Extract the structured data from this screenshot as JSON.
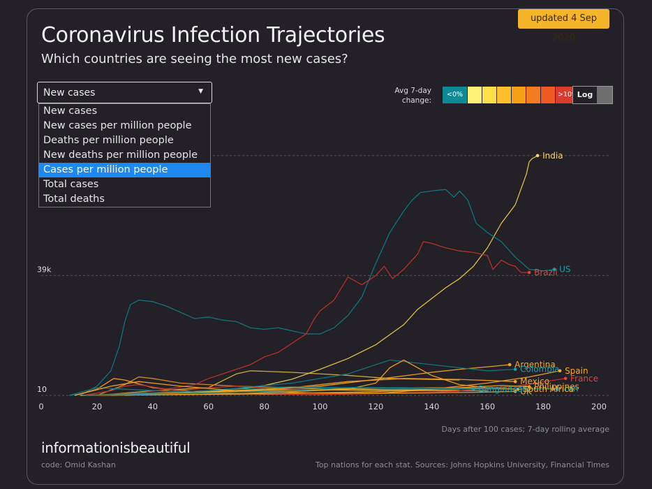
{
  "header": {
    "updated": "updated 4 Sep 2020",
    "title": "Coronavirus Infection Trajectories",
    "subtitle": "Which countries are seeing the most new cases?"
  },
  "metric_select": {
    "value": "New cases",
    "options": [
      "New cases",
      "New cases per million people",
      "Deaths per million people",
      "New deaths per million people",
      "Cases per million people",
      "Total cases",
      "Total deaths"
    ],
    "highlighted": "Cases per million people"
  },
  "legend": {
    "label_line1": "Avg 7-day",
    "label_line2": "change:",
    "swatches": [
      {
        "label": "<0%",
        "color": "#0d8a96"
      },
      {
        "label": "",
        "color": "#fff176"
      },
      {
        "label": "",
        "color": "#fde047"
      },
      {
        "label": "",
        "color": "#fbc02d"
      },
      {
        "label": "",
        "color": "#f6a016"
      },
      {
        "label": "",
        "color": "#f47b20"
      },
      {
        "label": "",
        "color": "#f05a22"
      },
      {
        "label": ">10%",
        "color": "#d93b2e"
      }
    ]
  },
  "log_toggle": {
    "label": "Log",
    "on": false
  },
  "chart_data": {
    "type": "line",
    "xlabel": "Days after 100 cases; 7-day rolling average",
    "ylabel": "",
    "xlim": [
      0,
      200
    ],
    "xticks": [
      0,
      20,
      40,
      60,
      80,
      100,
      120,
      140,
      160,
      180,
      200
    ],
    "y_gridlines": [
      {
        "label": "10",
        "value": 10
      },
      {
        "label": "39k",
        "value": 39000
      },
      {
        "label": "",
        "value": 78000
      }
    ],
    "ylim": [
      0,
      90000
    ],
    "grid": true,
    "series": [
      {
        "name": "India",
        "color": "#e8c84a",
        "label_color": "#f5d76e",
        "points": [
          [
            14,
            10
          ],
          [
            20,
            150
          ],
          [
            30,
            300
          ],
          [
            40,
            500
          ],
          [
            50,
            800
          ],
          [
            60,
            1300
          ],
          [
            70,
            2000
          ],
          [
            80,
            3200
          ],
          [
            90,
            5300
          ],
          [
            100,
            8500
          ],
          [
            110,
            12000
          ],
          [
            120,
            16500
          ],
          [
            130,
            23000
          ],
          [
            135,
            28000
          ],
          [
            140,
            31500
          ],
          [
            145,
            35000
          ],
          [
            150,
            38000
          ],
          [
            155,
            42000
          ],
          [
            160,
            48000
          ],
          [
            165,
            56000
          ],
          [
            170,
            62000
          ],
          [
            172,
            67000
          ],
          [
            174,
            72000
          ],
          [
            175,
            76000
          ],
          [
            176,
            77000
          ],
          [
            178,
            78000
          ]
        ]
      },
      {
        "name": "US",
        "color": "#0e7a84",
        "label_color": "#17a2ae",
        "points": [
          [
            10,
            10
          ],
          [
            15,
            500
          ],
          [
            20,
            3000
          ],
          [
            25,
            8000
          ],
          [
            28,
            16000
          ],
          [
            30,
            24000
          ],
          [
            32,
            29500
          ],
          [
            35,
            31000
          ],
          [
            40,
            30500
          ],
          [
            45,
            29000
          ],
          [
            50,
            27000
          ],
          [
            55,
            25000
          ],
          [
            60,
            25500
          ],
          [
            65,
            24500
          ],
          [
            70,
            24000
          ],
          [
            75,
            22000
          ],
          [
            80,
            21500
          ],
          [
            85,
            22000
          ],
          [
            90,
            21000
          ],
          [
            95,
            20000
          ],
          [
            100,
            20000
          ],
          [
            105,
            22000
          ],
          [
            110,
            26000
          ],
          [
            115,
            32000
          ],
          [
            120,
            43000
          ],
          [
            125,
            53000
          ],
          [
            130,
            60000
          ],
          [
            133,
            63500
          ],
          [
            136,
            66000
          ],
          [
            140,
            66500
          ],
          [
            145,
            67000
          ],
          [
            148,
            64500
          ],
          [
            150,
            66500
          ],
          [
            153,
            63500
          ],
          [
            156,
            56000
          ],
          [
            160,
            53000
          ],
          [
            165,
            50000
          ],
          [
            170,
            45000
          ],
          [
            175,
            41000
          ],
          [
            180,
            40500
          ],
          [
            184,
            41000
          ]
        ]
      },
      {
        "name": "Brazil",
        "color": "#c0322b",
        "label_color": "#e0463a",
        "points": [
          [
            15,
            10
          ],
          [
            25,
            300
          ],
          [
            35,
            800
          ],
          [
            45,
            2000
          ],
          [
            55,
            3500
          ],
          [
            60,
            5500
          ],
          [
            65,
            7000
          ],
          [
            70,
            8500
          ],
          [
            75,
            10000
          ],
          [
            80,
            12500
          ],
          [
            85,
            14000
          ],
          [
            90,
            17000
          ],
          [
            95,
            20000
          ],
          [
            98,
            25000
          ],
          [
            100,
            27500
          ],
          [
            105,
            31000
          ],
          [
            110,
            38500
          ],
          [
            115,
            36000
          ],
          [
            120,
            39000
          ],
          [
            123,
            42000
          ],
          [
            126,
            38000
          ],
          [
            130,
            41000
          ],
          [
            135,
            46000
          ],
          [
            137,
            50000
          ],
          [
            140,
            49500
          ],
          [
            145,
            48000
          ],
          [
            150,
            47000
          ],
          [
            155,
            46500
          ],
          [
            160,
            45500
          ],
          [
            162,
            41000
          ],
          [
            165,
            44000
          ],
          [
            168,
            42500
          ],
          [
            170,
            42000
          ],
          [
            172,
            40000
          ],
          [
            175,
            40000
          ]
        ]
      },
      {
        "name": "Argentina",
        "color": "#f4a21d",
        "label_color": "#f7a823",
        "points": [
          [
            15,
            10
          ],
          [
            50,
            800
          ],
          [
            80,
            2000
          ],
          [
            100,
            3000
          ],
          [
            120,
            5200
          ],
          [
            140,
            7500
          ],
          [
            150,
            8500
          ],
          [
            160,
            9300
          ],
          [
            168,
            10000
          ]
        ]
      },
      {
        "name": "Colombia",
        "color": "#0e7a84",
        "label_color": "#17a2ae",
        "points": [
          [
            15,
            10
          ],
          [
            60,
            1500
          ],
          [
            90,
            4000
          ],
          [
            110,
            7000
          ],
          [
            120,
            10000
          ],
          [
            125,
            11500
          ],
          [
            130,
            11000
          ],
          [
            140,
            10000
          ],
          [
            150,
            9000
          ],
          [
            160,
            8000
          ],
          [
            170,
            8500
          ]
        ]
      },
      {
        "name": "Spain",
        "color": "#f4a21d",
        "label_color": "#f7a823",
        "points": [
          [
            12,
            10
          ],
          [
            20,
            2000
          ],
          [
            26,
            5500
          ],
          [
            30,
            5000
          ],
          [
            40,
            2500
          ],
          [
            60,
            800
          ],
          [
            80,
            400
          ],
          [
            100,
            300
          ],
          [
            120,
            600
          ],
          [
            140,
            2000
          ],
          [
            160,
            4000
          ],
          [
            175,
            6000
          ],
          [
            186,
            8000
          ]
        ]
      },
      {
        "name": "France",
        "color": "#c0322b",
        "label_color": "#e0463a",
        "points": [
          [
            15,
            10
          ],
          [
            25,
            1500
          ],
          [
            30,
            3000
          ],
          [
            35,
            3500
          ],
          [
            45,
            2000
          ],
          [
            60,
            600
          ],
          [
            100,
            300
          ],
          [
            140,
            800
          ],
          [
            170,
            3000
          ],
          [
            188,
            5500
          ]
        ]
      },
      {
        "name": "Mexico",
        "color": "#f4a21d",
        "label_color": "#f7a823",
        "points": [
          [
            15,
            10
          ],
          [
            60,
            1000
          ],
          [
            90,
            2500
          ],
          [
            110,
            4500
          ],
          [
            130,
            5500
          ],
          [
            150,
            5200
          ],
          [
            170,
            4500
          ]
        ]
      },
      {
        "name": "Philippines",
        "color": "#f4a21d",
        "label_color": "#f7a823",
        "points": [
          [
            15,
            10
          ],
          [
            80,
            500
          ],
          [
            120,
            1200
          ],
          [
            150,
            2500
          ],
          [
            165,
            3200
          ],
          [
            175,
            2800
          ]
        ]
      },
      {
        "name": "Iran",
        "color": "#0e7a84",
        "label_color": "#17a2ae",
        "points": [
          [
            10,
            10
          ],
          [
            20,
            2500
          ],
          [
            30,
            2000
          ],
          [
            50,
            1200
          ],
          [
            70,
            2000
          ],
          [
            90,
            2800
          ],
          [
            110,
            2500
          ],
          [
            130,
            2200
          ],
          [
            160,
            2000
          ],
          [
            185,
            2200
          ]
        ]
      },
      {
        "name": "UK",
        "color": "#f4a21d",
        "label_color": "#f7a823",
        "points": [
          [
            12,
            10
          ],
          [
            25,
            3000
          ],
          [
            35,
            4500
          ],
          [
            50,
            3000
          ],
          [
            70,
            1500
          ],
          [
            100,
            700
          ],
          [
            130,
            800
          ],
          [
            155,
            1000
          ],
          [
            170,
            1300
          ]
        ]
      },
      {
        "name": "South Africa",
        "color": "#f4a21d",
        "label_color": "#f7a823",
        "points": [
          [
            15,
            10
          ],
          [
            70,
            500
          ],
          [
            110,
            2000
          ],
          [
            120,
            4000
          ],
          [
            125,
            9000
          ],
          [
            130,
            11500
          ],
          [
            135,
            9000
          ],
          [
            140,
            6500
          ],
          [
            150,
            3500
          ],
          [
            160,
            2500
          ],
          [
            171,
            2000
          ]
        ]
      },
      {
        "name": "Bangladesh",
        "color": "#0e7a84",
        "label_color": "#17a2ae",
        "points": [
          [
            15,
            10
          ],
          [
            60,
            800
          ],
          [
            90,
            1500
          ],
          [
            110,
            2600
          ],
          [
            130,
            2500
          ],
          [
            150,
            2200
          ],
          [
            155,
            2100
          ]
        ]
      },
      {
        "name": "",
        "color": "#d4b33a",
        "label_color": "",
        "points": [
          [
            20,
            10
          ],
          [
            40,
            1500
          ],
          [
            60,
            2500
          ],
          [
            70,
            7000
          ],
          [
            75,
            8000
          ],
          [
            90,
            7500
          ],
          [
            110,
            6500
          ],
          [
            125,
            5500
          ],
          [
            140,
            5200
          ],
          [
            150,
            5000
          ]
        ]
      },
      {
        "name": "",
        "color": "#e08a1e",
        "label_color": "",
        "points": [
          [
            20,
            10
          ],
          [
            30,
            3500
          ],
          [
            35,
            6000
          ],
          [
            40,
            5500
          ],
          [
            50,
            4000
          ],
          [
            60,
            3500
          ],
          [
            70,
            3000
          ],
          [
            90,
            2500
          ],
          [
            110,
            2000
          ],
          [
            140,
            1800
          ],
          [
            150,
            1700
          ]
        ]
      },
      {
        "name": "",
        "color": "#d9a52a",
        "label_color": "",
        "points": [
          [
            25,
            10
          ],
          [
            50,
            1000
          ],
          [
            80,
            1800
          ],
          [
            110,
            2200
          ],
          [
            140,
            2500
          ],
          [
            160,
            2300
          ]
        ]
      },
      {
        "name": "",
        "color": "#b83a2a",
        "label_color": "",
        "points": [
          [
            20,
            10
          ],
          [
            40,
            800
          ],
          [
            60,
            2500
          ],
          [
            70,
            3000
          ],
          [
            90,
            2000
          ],
          [
            120,
            1500
          ],
          [
            150,
            1300
          ]
        ]
      },
      {
        "name": "",
        "color": "#c8a030",
        "label_color": "",
        "points": [
          [
            30,
            10
          ],
          [
            55,
            900
          ],
          [
            75,
            1400
          ],
          [
            100,
            1800
          ],
          [
            130,
            1600
          ],
          [
            160,
            1500
          ]
        ]
      }
    ]
  },
  "footer": {
    "axis_note": "Days after 100 cases; 7-day rolling average",
    "brand": "informationisbeautiful",
    "credit": "code: Omid Kashan",
    "sources": "Top nations for each stat. Sources: Johns Hopkins University, Financial Times"
  }
}
